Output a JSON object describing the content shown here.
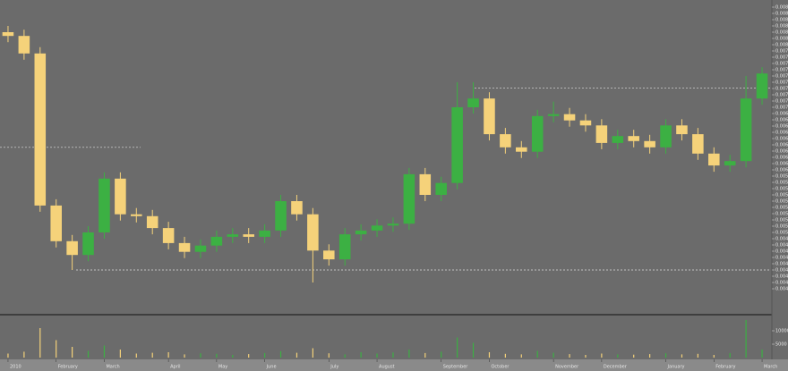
{
  "chart_data": {
    "type": "candlestick",
    "categories": [
      "2010",
      null,
      null,
      "February",
      null,
      null,
      "March",
      null,
      null,
      null,
      "April",
      null,
      null,
      "May",
      null,
      null,
      "June",
      null,
      null,
      null,
      "July",
      null,
      null,
      "August",
      null,
      null,
      null,
      "September",
      null,
      null,
      "October",
      null,
      null,
      null,
      "November",
      null,
      null,
      "December",
      null,
      null,
      null,
      "January",
      null,
      null,
      "February",
      null,
      null,
      "March"
    ],
    "open": [
      0.0082,
      0.00814,
      0.00786,
      0.00543,
      0.00486,
      0.00464,
      0.005,
      0.00586,
      0.00529,
      0.00526,
      0.00507,
      0.00483,
      0.00469,
      0.00479,
      0.00493,
      0.00497,
      0.00493,
      0.00503,
      0.0055,
      0.00529,
      0.00471,
      0.00457,
      0.00497,
      0.00503,
      0.00511,
      0.00514,
      0.00593,
      0.0056,
      0.00579,
      0.007,
      0.00714,
      0.00657,
      0.00636,
      0.00629,
      0.00686,
      0.00689,
      0.00679,
      0.00671,
      0.00643,
      0.00654,
      0.00646,
      0.00636,
      0.00671,
      0.00657,
      0.00626,
      0.00607,
      0.00614,
      0.00714
    ],
    "close": [
      0.00814,
      0.00786,
      0.00543,
      0.00486,
      0.00464,
      0.005,
      0.00586,
      0.00529,
      0.00526,
      0.00507,
      0.00483,
      0.00469,
      0.00479,
      0.00493,
      0.00497,
      0.00493,
      0.00503,
      0.0055,
      0.00529,
      0.00471,
      0.00457,
      0.00497,
      0.00503,
      0.00511,
      0.00514,
      0.00593,
      0.0056,
      0.00579,
      0.007,
      0.00714,
      0.00657,
      0.00636,
      0.00629,
      0.00686,
      0.00689,
      0.00679,
      0.00671,
      0.00643,
      0.00654,
      0.00646,
      0.00636,
      0.00671,
      0.00657,
      0.00626,
      0.00607,
      0.00614,
      0.00714,
      0.00754
    ],
    "high": [
      0.0083,
      0.00824,
      0.00796,
      0.00553,
      0.00496,
      0.0051,
      0.00596,
      0.00596,
      0.00539,
      0.00536,
      0.00517,
      0.00493,
      0.00489,
      0.00503,
      0.00507,
      0.00507,
      0.00513,
      0.0056,
      0.0056,
      0.00539,
      0.00481,
      0.00507,
      0.00513,
      0.00521,
      0.00524,
      0.00603,
      0.00603,
      0.00589,
      0.0074,
      0.0074,
      0.00724,
      0.00667,
      0.00646,
      0.00696,
      0.00709,
      0.00699,
      0.00689,
      0.00681,
      0.00664,
      0.00664,
      0.00656,
      0.00681,
      0.00681,
      0.00667,
      0.00636,
      0.00624,
      0.0075,
      0.00764
    ],
    "low": [
      0.00804,
      0.00776,
      0.00533,
      0.00476,
      0.0044,
      0.00454,
      0.0049,
      0.00519,
      0.00516,
      0.00497,
      0.00473,
      0.00459,
      0.00459,
      0.00469,
      0.00483,
      0.00483,
      0.00483,
      0.00493,
      0.00519,
      0.0042,
      0.00447,
      0.00447,
      0.00487,
      0.00493,
      0.00501,
      0.00504,
      0.0055,
      0.0055,
      0.00569,
      0.0069,
      0.00647,
      0.00626,
      0.00619,
      0.00619,
      0.00676,
      0.00669,
      0.00661,
      0.00633,
      0.00633,
      0.00636,
      0.00626,
      0.00626,
      0.00647,
      0.00616,
      0.00597,
      0.00597,
      0.00604,
      0.00704
    ],
    "volume": [
      1500,
      2200,
      11000,
      6500,
      4000,
      2500,
      4500,
      3000,
      1500,
      1800,
      2000,
      1200,
      1600,
      1400,
      1000,
      1300,
      1700,
      2400,
      1800,
      3500,
      1600,
      1200,
      2000,
      1500,
      1900,
      3000,
      1700,
      2200,
      7500,
      5500,
      2000,
      1400,
      1200,
      2500,
      1800,
      1300,
      1000,
      1500,
      1200,
      1100,
      1300,
      1600,
      1200,
      1400,
      1000,
      1700,
      14000,
      3000
    ],
    "ylim": [
      0.0038,
      0.0087
    ],
    "yticks": [
      0.0086,
      0.0085,
      0.0084,
      0.0083,
      0.0082,
      0.0081,
      0.008,
      0.0079,
      0.0078,
      0.0077,
      0.0076,
      0.0075,
      0.0074,
      0.0073,
      0.0072,
      0.0071,
      0.007,
      0.0069,
      0.0068,
      0.0067,
      0.0066,
      0.0065,
      0.0064,
      0.0063,
      0.0062,
      0.0061,
      0.006,
      0.0059,
      0.0058,
      0.0057,
      0.0056,
      0.0055,
      0.0054,
      0.0053,
      0.0052,
      0.0051,
      0.005,
      0.0049,
      0.0048,
      0.0047,
      0.0046,
      0.0045,
      0.0044,
      0.0043,
      0.0042,
      0.0041
    ],
    "vol_ylim": [
      0,
      15000
    ],
    "vol_yticks": [
      10000,
      5000
    ],
    "levels": [
      0.00636,
      0.0044,
      0.00731
    ],
    "up_color": "#3cb043",
    "down_color": "#f5d27a"
  }
}
